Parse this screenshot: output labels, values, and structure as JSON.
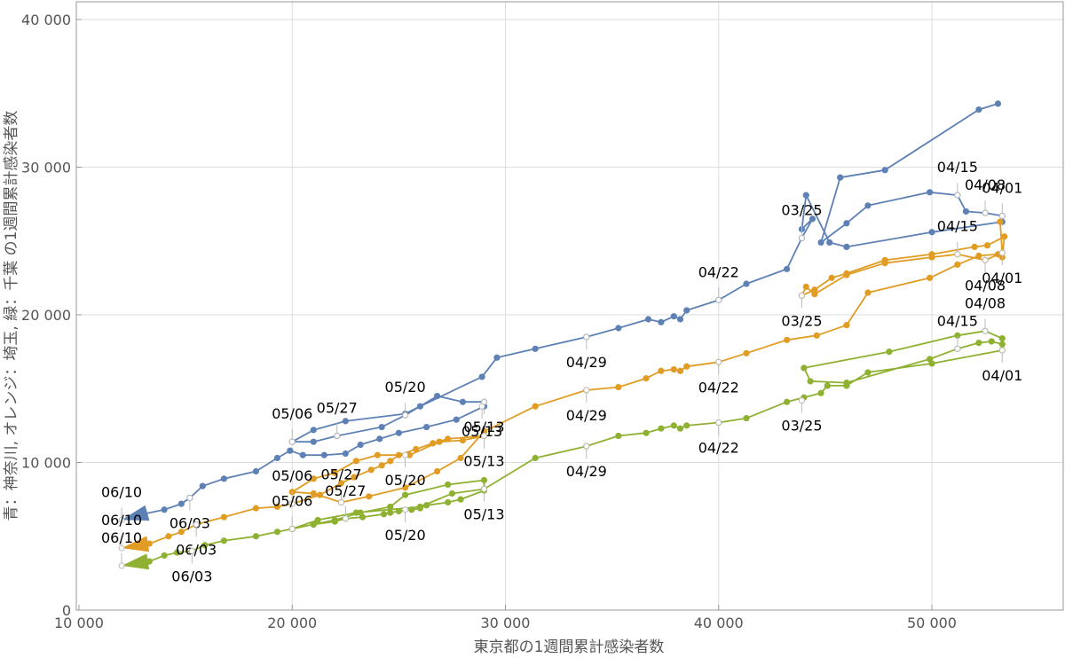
{
  "chart_data": {
    "type": "line",
    "xlabel": "東京都の1週間累計感染者数",
    "ylabel": "青：神奈川, オレンジ：埼玉, 緑：千葉 の1週間累計感染者数",
    "xlim": [
      10000,
      56000
    ],
    "ylim": [
      0,
      41000
    ],
    "x_ticks": [
      10000,
      20000,
      30000,
      40000,
      50000
    ],
    "y_ticks": [
      0,
      10000,
      20000,
      30000,
      40000
    ],
    "x_tick_labels": [
      "10 000",
      "20 000",
      "30 000",
      "40 000",
      "50 000"
    ],
    "y_tick_labels": [
      "0",
      "10 000",
      "20 000",
      "30 000",
      "40 000"
    ],
    "grid": true,
    "series": [
      {
        "color": "#5e81b5",
        "points": [
          [
            12000,
            6100
          ],
          [
            13000,
            6500
          ],
          [
            14000,
            6800
          ],
          [
            14800,
            7200
          ],
          [
            15200,
            7600
          ],
          [
            15800,
            8400
          ],
          [
            16800,
            8900
          ],
          [
            18300,
            9400
          ],
          [
            19300,
            10300
          ],
          [
            19900,
            10800
          ],
          [
            20500,
            10500
          ],
          [
            21500,
            10500
          ],
          [
            22500,
            10600
          ],
          [
            23200,
            11200
          ],
          [
            24100,
            11600
          ],
          [
            25000,
            12000
          ],
          [
            26300,
            12400
          ],
          [
            27700,
            12900
          ],
          [
            29000,
            13800
          ],
          [
            29000,
            14100
          ],
          [
            28000,
            14100
          ],
          [
            26800,
            14500
          ],
          [
            25300,
            13200
          ],
          [
            24200,
            12400
          ],
          [
            22100,
            11800
          ],
          [
            21000,
            11400
          ],
          [
            20000,
            11400
          ],
          [
            21000,
            12200
          ],
          [
            22500,
            12800
          ],
          [
            25300,
            13300
          ],
          [
            26000,
            13800
          ],
          [
            28900,
            15800
          ],
          [
            29600,
            17100
          ],
          [
            31400,
            17700
          ],
          [
            33800,
            18500
          ],
          [
            35300,
            19100
          ],
          [
            36700,
            19700
          ],
          [
            37300,
            19500
          ],
          [
            37900,
            19900
          ],
          [
            38200,
            19700
          ],
          [
            38500,
            20300
          ],
          [
            40000,
            21000
          ],
          [
            41300,
            22100
          ],
          [
            43200,
            23100
          ],
          [
            43900,
            25200
          ],
          [
            44400,
            26500
          ],
          [
            43900,
            25800
          ],
          [
            44100,
            28100
          ],
          [
            45200,
            24900
          ],
          [
            46000,
            24600
          ],
          [
            50000,
            25600
          ],
          [
            53300,
            26300
          ],
          [
            53300,
            26700
          ],
          [
            52500,
            26900
          ],
          [
            51600,
            27000
          ],
          [
            51200,
            28100
          ],
          [
            49900,
            28300
          ],
          [
            47000,
            27400
          ],
          [
            46000,
            26200
          ],
          [
            44800,
            24900
          ],
          [
            45700,
            29300
          ],
          [
            47800,
            29800
          ],
          [
            52200,
            33900
          ],
          [
            53100,
            34300
          ]
        ],
        "dates": [
          {
            "label": "06/10",
            "x": 12000,
            "y": 6100
          },
          {
            "label": "06/03",
            "x": 15200,
            "y": 7600
          },
          {
            "label": "05/27",
            "x": 22100,
            "y": 11800
          },
          {
            "label": "05/20",
            "x": 25300,
            "y": 13200
          },
          {
            "label": "05/13",
            "x": 29000,
            "y": 14100
          },
          {
            "label": "05/06",
            "x": 20000,
            "y": 11400
          },
          {
            "label": "05/13",
            "x": 28900,
            "y": 13800
          },
          {
            "label": "04/29",
            "x": 33800,
            "y": 18500
          },
          {
            "label": "04/22",
            "x": 40000,
            "y": 21000
          },
          {
            "label": "03/25",
            "x": 43900,
            "y": 25200
          },
          {
            "label": "04/15",
            "x": 51200,
            "y": 28100
          },
          {
            "label": "04/08",
            "x": 52500,
            "y": 26900
          },
          {
            "label": "04/01",
            "x": 53300,
            "y": 26700
          }
        ]
      },
      {
        "color": "#e19c24",
        "points": [
          [
            12000,
            4200
          ],
          [
            13300,
            4500
          ],
          [
            14200,
            5000
          ],
          [
            14800,
            5300
          ],
          [
            15500,
            5800
          ],
          [
            16800,
            6300
          ],
          [
            18300,
            6900
          ],
          [
            19300,
            7000
          ],
          [
            20000,
            7200
          ],
          [
            21300,
            7800
          ],
          [
            22300,
            8600
          ],
          [
            22900,
            9000
          ],
          [
            23700,
            9500
          ],
          [
            24200,
            9800
          ],
          [
            24600,
            10100
          ],
          [
            25000,
            10500
          ],
          [
            25800,
            10900
          ],
          [
            26600,
            11300
          ],
          [
            27300,
            11600
          ],
          [
            29000,
            11800
          ],
          [
            28000,
            11500
          ],
          [
            26900,
            11400
          ],
          [
            25500,
            10500
          ],
          [
            24000,
            10500
          ],
          [
            23000,
            10100
          ],
          [
            22000,
            9300
          ],
          [
            21000,
            8900
          ],
          [
            20000,
            8000
          ],
          [
            21000,
            7900
          ],
          [
            22300,
            7300
          ],
          [
            23600,
            7700
          ],
          [
            25300,
            8300
          ],
          [
            26800,
            9400
          ],
          [
            27900,
            10300
          ],
          [
            29000,
            12100
          ],
          [
            31400,
            13800
          ],
          [
            33800,
            14900
          ],
          [
            35300,
            15100
          ],
          [
            36600,
            15700
          ],
          [
            37300,
            16200
          ],
          [
            37900,
            16300
          ],
          [
            38200,
            16200
          ],
          [
            38500,
            16500
          ],
          [
            40000,
            16800
          ],
          [
            41300,
            17400
          ],
          [
            43200,
            18300
          ],
          [
            44600,
            18600
          ],
          [
            46000,
            19300
          ],
          [
            47000,
            21500
          ],
          [
            49900,
            22500
          ],
          [
            51200,
            23400
          ],
          [
            52200,
            24000
          ],
          [
            53100,
            24100
          ],
          [
            53300,
            23900
          ],
          [
            53400,
            25300
          ],
          [
            52600,
            24700
          ],
          [
            52000,
            24600
          ],
          [
            50000,
            24100
          ],
          [
            47800,
            23700
          ],
          [
            46000,
            22800
          ],
          [
            45300,
            22500
          ],
          [
            44500,
            21700
          ],
          [
            43900,
            21300
          ],
          [
            44100,
            21900
          ],
          [
            44500,
            21400
          ],
          [
            46000,
            22700
          ],
          [
            47800,
            23500
          ],
          [
            50000,
            23900
          ],
          [
            51200,
            24100
          ],
          [
            52500,
            23700
          ],
          [
            53300,
            24200
          ],
          [
            53200,
            26300
          ]
        ],
        "dates": [
          {
            "label": "06/10",
            "x": 12000,
            "y": 4200
          },
          {
            "label": "06/03",
            "x": 15500,
            "y": 5800
          },
          {
            "label": "05/06",
            "x": 20000,
            "y": 7200
          },
          {
            "label": "05/27",
            "x": 22300,
            "y": 7300
          },
          {
            "label": "05/20",
            "x": 25300,
            "y": 10500
          },
          {
            "label": "05/13",
            "x": 29000,
            "y": 11800
          },
          {
            "label": "04/29",
            "x": 33800,
            "y": 14900
          },
          {
            "label": "04/22",
            "x": 40000,
            "y": 16800
          },
          {
            "label": "03/25",
            "x": 43900,
            "y": 21300
          },
          {
            "label": "04/15",
            "x": 51200,
            "y": 24100
          },
          {
            "label": "04/08",
            "x": 52500,
            "y": 23700
          },
          {
            "label": "04/01",
            "x": 53300,
            "y": 24200
          }
        ]
      },
      {
        "color": "#8fb131",
        "points": [
          [
            12000,
            3000
          ],
          [
            13300,
            3300
          ],
          [
            14000,
            3700
          ],
          [
            14600,
            3900
          ],
          [
            15300,
            4000
          ],
          [
            15900,
            4400
          ],
          [
            16800,
            4700
          ],
          [
            18300,
            5000
          ],
          [
            19300,
            5300
          ],
          [
            20000,
            5500
          ],
          [
            21000,
            5800
          ],
          [
            22000,
            6000
          ],
          [
            22500,
            6200
          ],
          [
            23300,
            6300
          ],
          [
            24300,
            6500
          ],
          [
            24600,
            6600
          ],
          [
            25000,
            6700
          ],
          [
            25600,
            6800
          ],
          [
            26000,
            6900
          ],
          [
            26300,
            7100
          ],
          [
            27300,
            7300
          ],
          [
            27900,
            7500
          ],
          [
            29000,
            8100
          ],
          [
            29000,
            8800
          ],
          [
            27300,
            8500
          ],
          [
            25300,
            7800
          ],
          [
            24600,
            7000
          ],
          [
            23200,
            6600
          ],
          [
            22000,
            6100
          ],
          [
            21000,
            5800
          ],
          [
            20000,
            5500
          ],
          [
            21200,
            6100
          ],
          [
            23000,
            6600
          ],
          [
            26000,
            7000
          ],
          [
            27500,
            7900
          ],
          [
            29000,
            8200
          ],
          [
            31400,
            10300
          ],
          [
            33800,
            11100
          ],
          [
            35300,
            11800
          ],
          [
            36600,
            12000
          ],
          [
            37300,
            12300
          ],
          [
            37900,
            12500
          ],
          [
            38200,
            12300
          ],
          [
            38500,
            12500
          ],
          [
            40000,
            12700
          ],
          [
            41300,
            13000
          ],
          [
            43200,
            14100
          ],
          [
            44000,
            14400
          ],
          [
            44800,
            14700
          ],
          [
            45100,
            15200
          ],
          [
            46000,
            15200
          ],
          [
            47000,
            16100
          ],
          [
            50000,
            16700
          ],
          [
            53300,
            17600
          ],
          [
            53300,
            18000
          ],
          [
            52800,
            18200
          ],
          [
            52200,
            18100
          ],
          [
            51200,
            17700
          ],
          [
            49900,
            17000
          ],
          [
            46000,
            15400
          ],
          [
            44300,
            15500
          ],
          [
            44000,
            16400
          ],
          [
            48000,
            17500
          ],
          [
            51200,
            18600
          ],
          [
            52500,
            18900
          ],
          [
            53300,
            18400
          ]
        ],
        "dates": [
          {
            "label": "06/10",
            "x": 12000,
            "y": 3000
          },
          {
            "label": "06/03",
            "x": 15300,
            "y": 4000
          },
          {
            "label": "05/06",
            "x": 20000,
            "y": 5500
          },
          {
            "label": "05/27",
            "x": 22500,
            "y": 6200
          },
          {
            "label": "05/20",
            "x": 25300,
            "y": 6800
          },
          {
            "label": "05/13",
            "x": 29000,
            "y": 8200
          },
          {
            "label": "04/29",
            "x": 33800,
            "y": 11100
          },
          {
            "label": "04/22",
            "x": 40000,
            "y": 12700
          },
          {
            "label": "03/25",
            "x": 43900,
            "y": 14200
          },
          {
            "label": "04/15",
            "x": 51200,
            "y": 17700
          },
          {
            "label": "04/08",
            "x": 52500,
            "y": 18900
          },
          {
            "label": "04/01",
            "x": 53300,
            "y": 17600
          }
        ]
      }
    ]
  }
}
